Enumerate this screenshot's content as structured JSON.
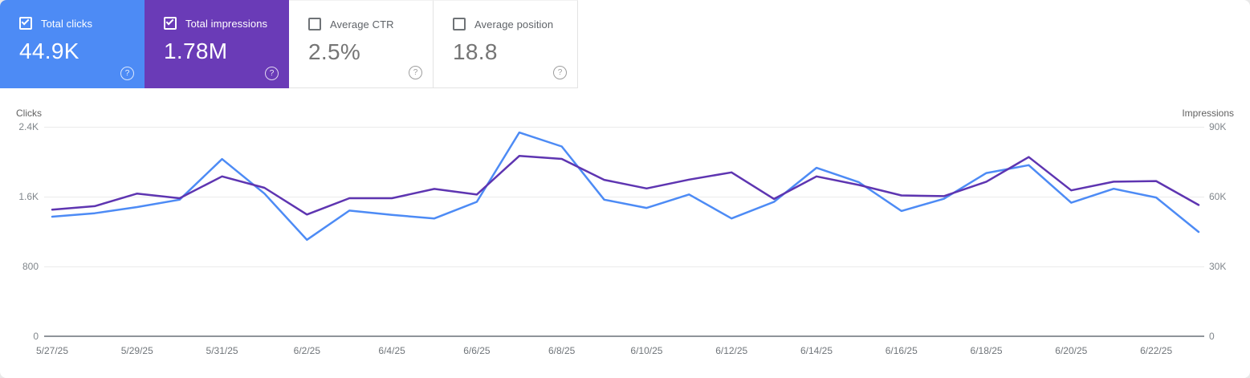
{
  "cards": [
    {
      "label": "Total clicks",
      "value": "44.9K",
      "checked": true,
      "bg": "#4d8bf5"
    },
    {
      "label": "Total impressions",
      "value": "1.78M",
      "checked": true,
      "bg": "#6a3bb7"
    },
    {
      "label": "Average CTR",
      "value": "2.5%",
      "checked": false,
      "bg": "#ffffff"
    },
    {
      "label": "Average position",
      "value": "18.8",
      "checked": false,
      "bg": "#ffffff"
    }
  ],
  "glyphs": {
    "help": "?"
  },
  "chart_data": {
    "type": "line",
    "x": [
      "5/27/25",
      "5/28/25",
      "5/29/25",
      "5/30/25",
      "5/31/25",
      "6/1/25",
      "6/2/25",
      "6/3/25",
      "6/4/25",
      "6/5/25",
      "6/6/25",
      "6/7/25",
      "6/8/25",
      "6/9/25",
      "6/10/25",
      "6/11/25",
      "6/12/25",
      "6/13/25",
      "6/14/25",
      "6/15/25",
      "6/16/25",
      "6/17/25",
      "6/18/25",
      "6/19/25",
      "6/20/25",
      "6/21/25",
      "6/22/25",
      "6/23/25"
    ],
    "x_tick_labels": [
      "5/27/25",
      "5/29/25",
      "5/31/25",
      "6/2/25",
      "6/4/25",
      "6/6/25",
      "6/8/25",
      "6/10/25",
      "6/12/25",
      "6/14/25",
      "6/16/25",
      "6/18/25",
      "6/20/25",
      "6/22/25"
    ],
    "series": [
      {
        "name": "Total clicks",
        "axis": "left",
        "color": "#4d8bf5",
        "values": [
          1370,
          1410,
          1480,
          1565,
          2030,
          1635,
          1105,
          1440,
          1390,
          1350,
          1540,
          2335,
          2175,
          1565,
          1470,
          1625,
          1350,
          1540,
          1930,
          1765,
          1435,
          1575,
          1870,
          1960,
          1530,
          1690,
          1590,
          1195
        ]
      },
      {
        "name": "Total impressions",
        "axis": "right",
        "color": "#5e35b1",
        "values": [
          54400,
          55900,
          61300,
          59300,
          68700,
          63800,
          52300,
          59300,
          59300,
          63300,
          60900,
          77500,
          76200,
          67200,
          63500,
          67300,
          70400,
          59000,
          68700,
          65000,
          60500,
          60200,
          66400,
          77000,
          62700,
          66400,
          66700,
          56400
        ]
      }
    ],
    "left_axis": {
      "label": "Clicks",
      "ticks": [
        "2.4K",
        "1.6K",
        "800",
        "0"
      ],
      "min": 0,
      "max": 2400
    },
    "right_axis": {
      "label": "Impressions",
      "ticks": [
        "90K",
        "60K",
        "30K",
        "0"
      ],
      "min": 0,
      "max": 90000
    },
    "grid": "horizontal",
    "legend": "none"
  }
}
